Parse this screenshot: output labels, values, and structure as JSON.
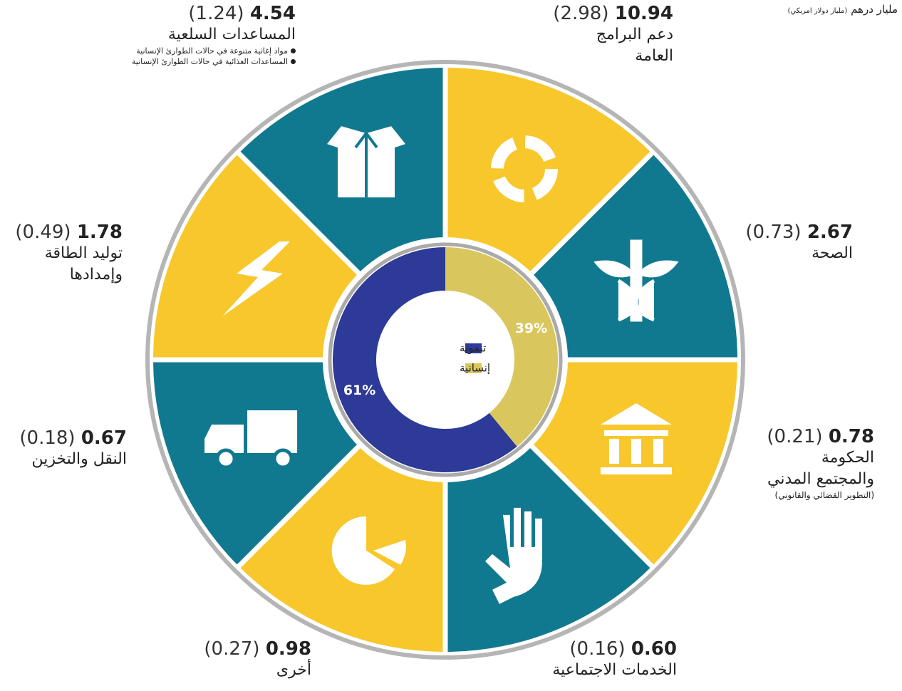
{
  "header": {
    "unit": "مليار درهم",
    "unit_usd": "(مليار دولار امريكي)"
  },
  "sectors": [
    {
      "name_lines": [
        "دعم البرامج",
        "العامة"
      ],
      "aed": "10.94",
      "usd": "(2.98)",
      "color": "#f7c72c"
    },
    {
      "name_lines": [
        "الصحة"
      ],
      "aed": "2.67",
      "usd": "(0.73)",
      "color": "#11798f"
    },
    {
      "name_lines": [
        "الحكومة",
        "والمجتمع المدني"
      ],
      "note": "(التطوير القضائي والقانوني)",
      "aed": "0.78",
      "usd": "(0.21)",
      "color": "#f7c72c"
    },
    {
      "name_lines": [
        "الخدمات الاجتماعية"
      ],
      "aed": "0.60",
      "usd": "(0.16)",
      "color": "#11798f"
    },
    {
      "name_lines": [
        "أخرى"
      ],
      "aed": "0.98",
      "usd": "(0.27)",
      "color": "#f7c72c"
    },
    {
      "name_lines": [
        "النقل والتخزين"
      ],
      "aed": "0.67",
      "usd": "(0.18)",
      "color": "#11798f"
    },
    {
      "name_lines": [
        "توليد الطاقة",
        "وإمدادها"
      ],
      "aed": "1.78",
      "usd": "(0.49)",
      "color": "#f7c72c"
    },
    {
      "name_lines": [
        "المساعدات السلعية"
      ],
      "bullets": [
        "مواد إغاثية متنوعة في حالات الطوارئ الإنسانية",
        "المساعدات الغذائية في حالات الطوارئ الإنسانية"
      ],
      "aed": "4.54",
      "usd": "(1.24)",
      "color": "#11798f"
    }
  ],
  "chart_data": {
    "type": "pie",
    "categories": [
      "تنموية",
      "إنسانية"
    ],
    "values": [
      61,
      39
    ],
    "value_labels": [
      "61%",
      "39%"
    ],
    "colors": [
      "#2d3a97",
      "#d9c65d"
    ]
  }
}
